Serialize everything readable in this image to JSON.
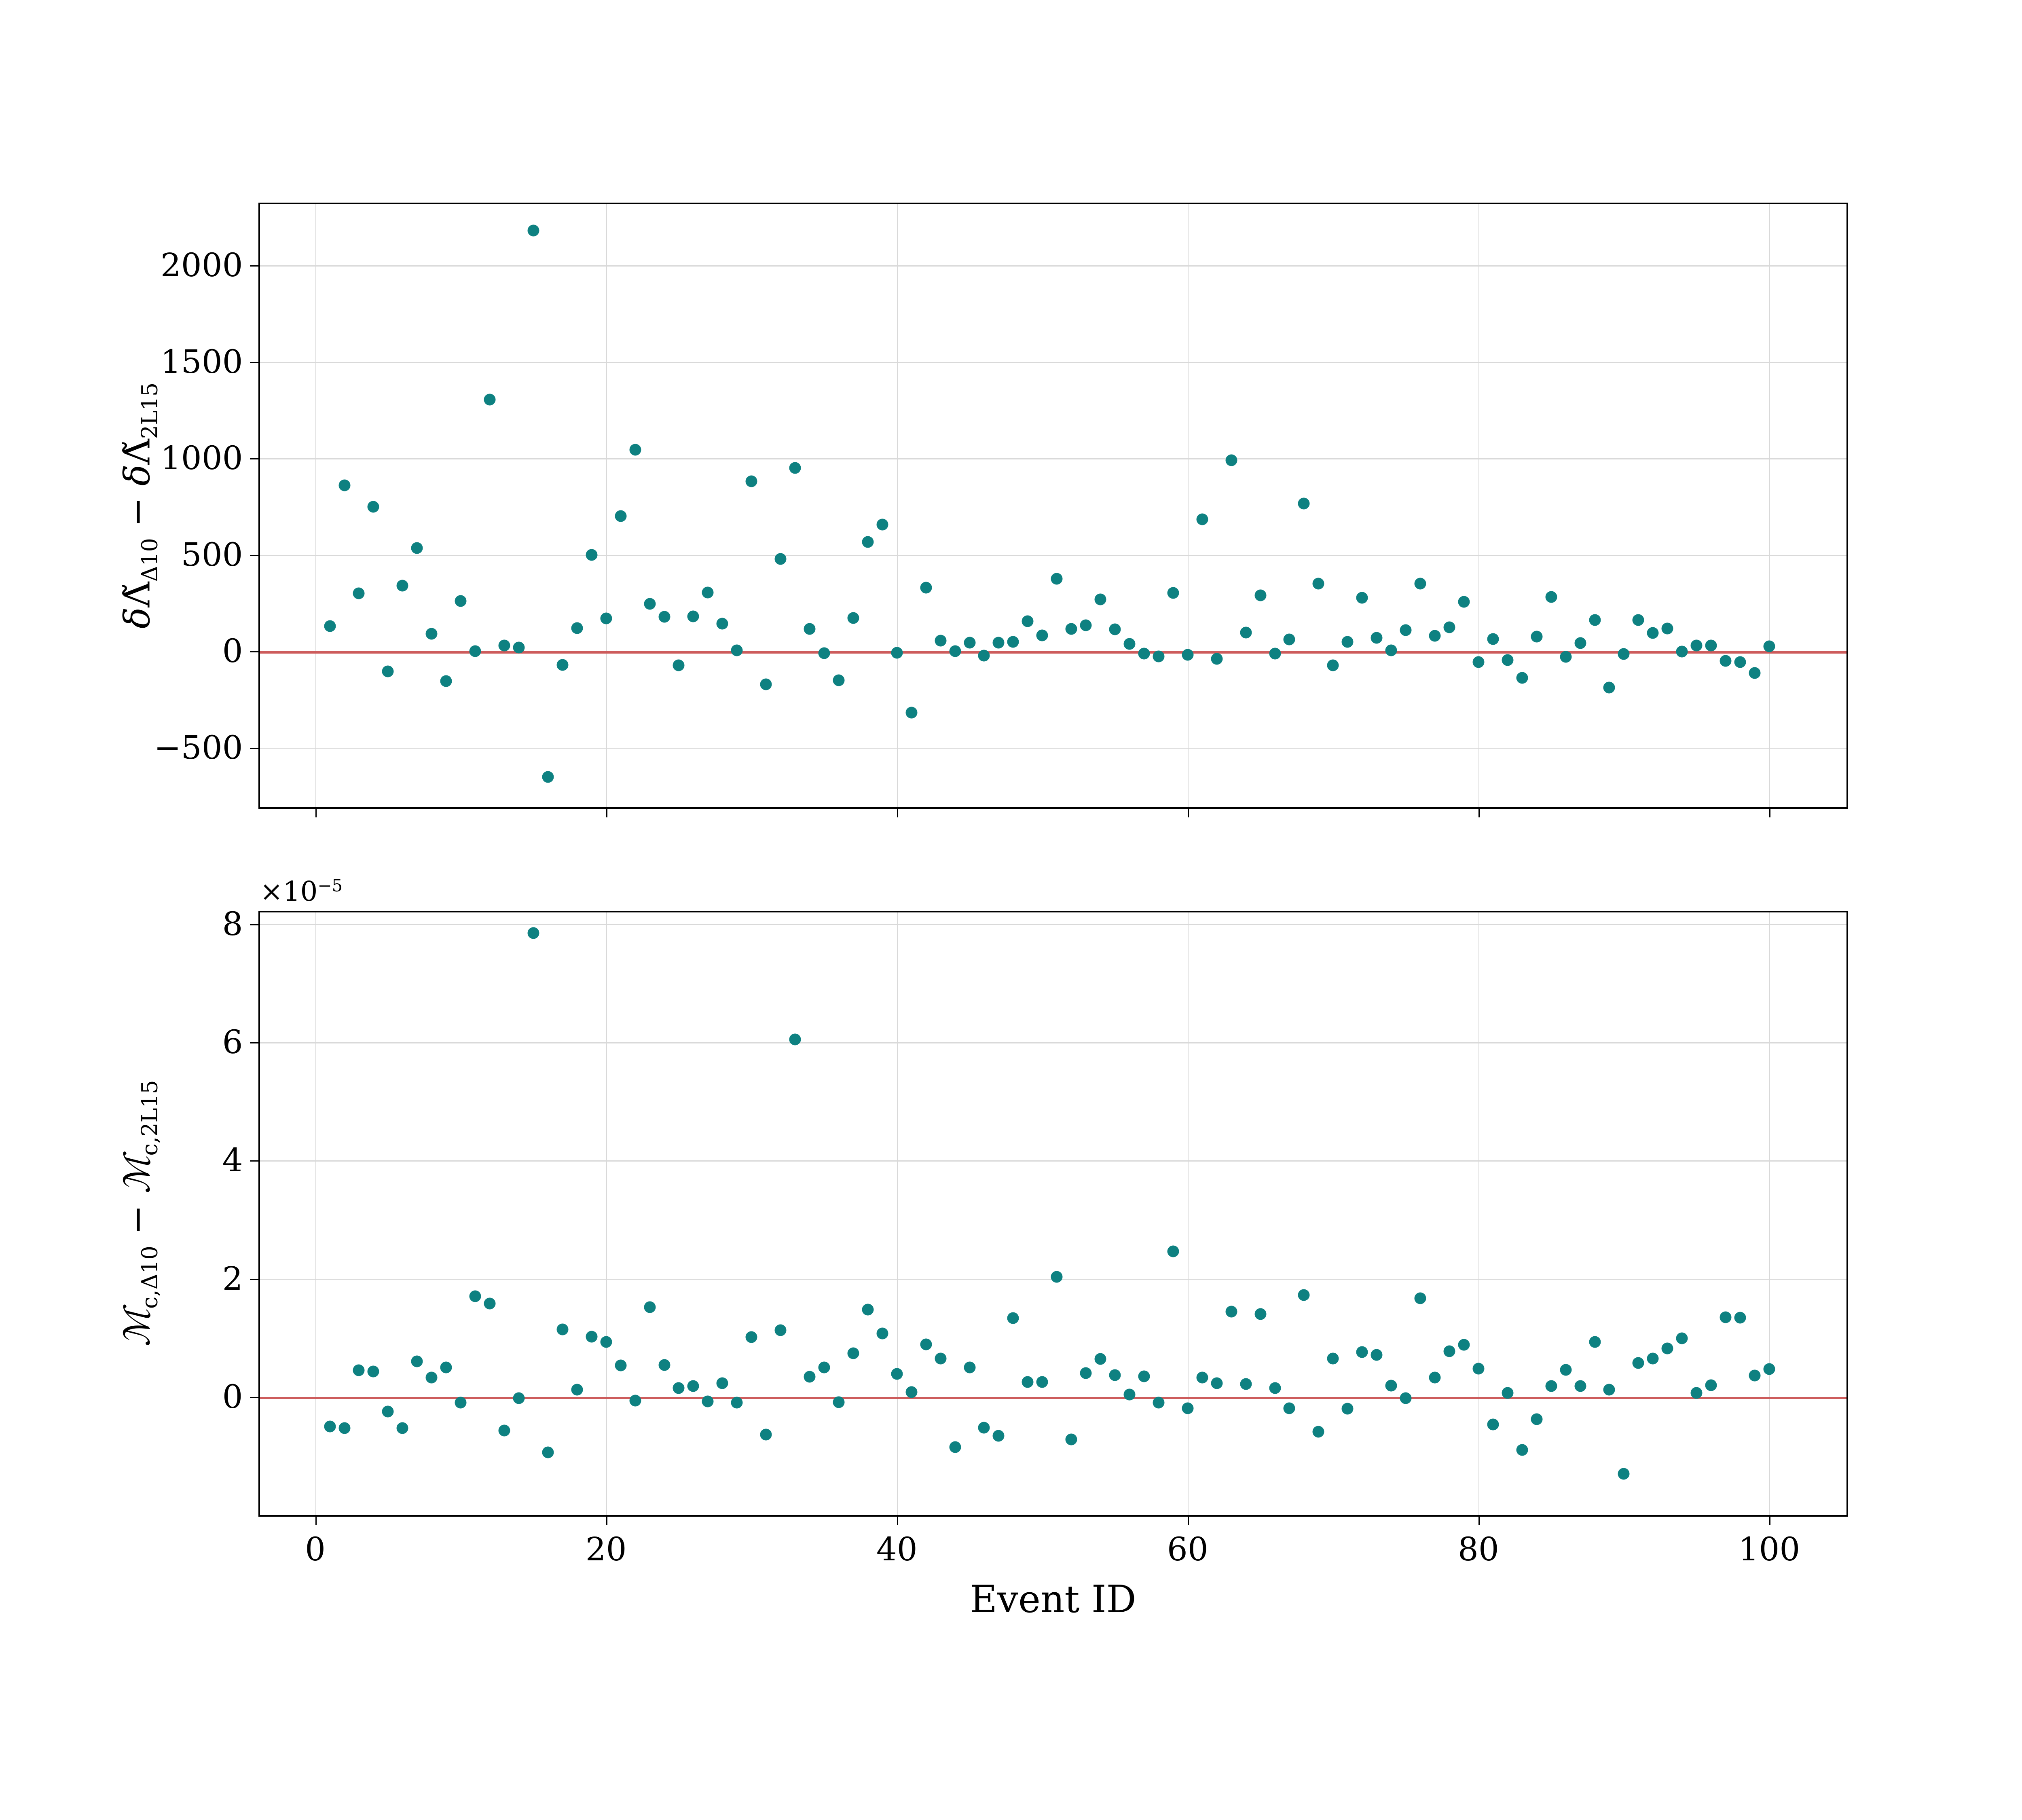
{
  "figure": {
    "background": "#ffffff"
  },
  "colors": {
    "marker": "#0e8181",
    "zero_line": "#cd5c5c",
    "grid": "#d9d9d9",
    "spine": "#000000",
    "text": "#000000"
  },
  "chart_data": {
    "type": "scatter",
    "x_label": "Event ID",
    "grid": true,
    "legend": null,
    "x_ticks": [
      0,
      20,
      40,
      60,
      80,
      100
    ],
    "x_lim": [
      -3.8,
      105.3
    ],
    "x": [
      1,
      2,
      3,
      4,
      5,
      6,
      7,
      8,
      9,
      10,
      11,
      12,
      13,
      14,
      15,
      16,
      17,
      18,
      19,
      20,
      21,
      22,
      23,
      24,
      25,
      26,
      27,
      28,
      29,
      30,
      31,
      32,
      33,
      34,
      35,
      36,
      37,
      38,
      39,
      40,
      41,
      42,
      43,
      44,
      45,
      46,
      47,
      48,
      49,
      50,
      51,
      52,
      53,
      54,
      55,
      56,
      57,
      58,
      59,
      60,
      61,
      62,
      63,
      64,
      65,
      66,
      67,
      68,
      69,
      70,
      71,
      72,
      73,
      74,
      75,
      76,
      77,
      78,
      79,
      80,
      81,
      82,
      83,
      84,
      85,
      86,
      87,
      88,
      89,
      90,
      91,
      92,
      93,
      94,
      95,
      96,
      97,
      98,
      99,
      100
    ],
    "panels": [
      {
        "id": "top",
        "ylabel_text": "δΛ̃_Δ10 − δΛ̃_2L15",
        "ylabel_segments": [
          {
            "t": "δ",
            "style": "it"
          },
          {
            "t": "Λ̃",
            "style": "base"
          },
          {
            "t": "Δ10",
            "style": "sub"
          },
          {
            "t": " − ",
            "style": "base"
          },
          {
            "t": "δ",
            "style": "it"
          },
          {
            "t": "Λ̃",
            "style": "base"
          },
          {
            "t": "2L15",
            "style": "sub"
          }
        ],
        "y_ticks": [
          -500,
          0,
          500,
          1000,
          1500,
          2000
        ],
        "y_lim": [
          -809,
          2317
        ],
        "show_x_tick_labels": false,
        "offset_text": null,
        "zero_line": 0,
        "y": [
          130,
          860,
          300,
          750,
          -105,
          340,
          535,
          90,
          -155,
          260,
          0,
          1305,
          30,
          20,
          2180,
          -650,
          -70,
          120,
          500,
          170,
          700,
          1045,
          245,
          180,
          -72,
          182,
          305,
          144,
          5,
          880,
          -170,
          478,
          950,
          116,
          -10,
          -150,
          173,
          567,
          656,
          -7,
          -318,
          330,
          56,
          0,
          44,
          -22,
          44,
          49,
          156,
          82,
          375,
          116,
          135,
          270,
          114,
          39,
          -11,
          -26,
          302,
          -18,
          683,
          -39,
          989,
          98,
          289,
          -11,
          61,
          766,
          350,
          -72,
          48,
          278,
          70,
          4,
          109,
          350,
          81,
          125,
          256,
          -55,
          63,
          -46,
          -138,
          77,
          282,
          -28,
          42,
          162,
          -188,
          -13,
          162,
          96,
          118,
          -2,
          31,
          31,
          -50,
          -55,
          -112,
          26
        ]
      },
      {
        "id": "bottom",
        "ylabel_text": "ℳ_c,Δ10 − ℳ_c,2L15",
        "ylabel_segments": [
          {
            "t": "ℳ",
            "style": "it"
          },
          {
            "t": "c,Δ10",
            "style": "sub"
          },
          {
            "t": " − ",
            "style": "base"
          },
          {
            "t": "ℳ",
            "style": "it"
          },
          {
            "t": "c,2L15",
            "style": "sub"
          }
        ],
        "y_ticks": [
          0,
          2,
          4,
          6,
          8
        ],
        "y_lim": [
          -2.0,
          8.2
        ],
        "y_unit": "1e-5",
        "show_x_tick_labels": true,
        "offset_text": {
          "base": "×10",
          "exp": "−5"
        },
        "zero_line": 0,
        "y": [
          -0.5,
          -0.53,
          0.45,
          0.43,
          -0.25,
          -0.53,
          0.6,
          0.33,
          0.5,
          -0.1,
          1.7,
          1.58,
          -0.57,
          -0.02,
          7.85,
          -0.94,
          1.14,
          0.12,
          1.02,
          0.93,
          0.53,
          -0.06,
          1.52,
          0.54,
          0.15,
          0.18,
          -0.08,
          0.23,
          -0.1,
          1.01,
          -0.64,
          1.13,
          6.05,
          0.34,
          0.5,
          -0.09,
          0.74,
          1.48,
          1.07,
          0.39,
          0.08,
          0.89,
          0.65,
          -0.85,
          0.5,
          -0.52,
          -0.66,
          1.33,
          0.25,
          0.25,
          2.03,
          -0.72,
          0.4,
          0.64,
          0.37,
          0.04,
          0.35,
          -0.1,
          2.46,
          -0.19,
          0.33,
          0.23,
          1.44,
          0.22,
          1.4,
          0.15,
          -0.19,
          1.72,
          -0.59,
          0.65,
          -0.2,
          0.76,
          0.71,
          0.19,
          -0.02,
          1.67,
          0.33,
          0.77,
          0.88,
          0.48,
          -0.47,
          0.07,
          -0.9,
          -0.38,
          0.18,
          0.46,
          0.18,
          0.93,
          0.12,
          -1.3,
          0.57,
          0.65,
          0.82,
          0.99,
          0.07,
          0.2,
          1.35,
          1.34,
          0.36,
          0.47
        ]
      }
    ]
  }
}
